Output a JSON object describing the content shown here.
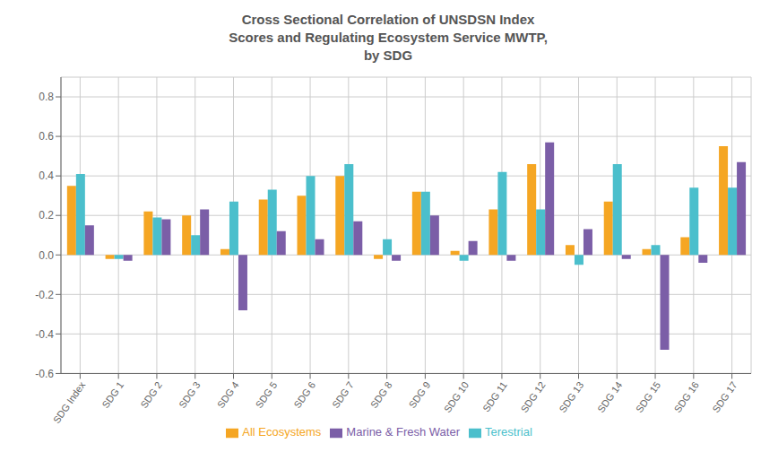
{
  "chart_data": {
    "type": "bar",
    "title": "Cross Sectional Correlation of UNSDSN Index\nScores and Regulating Ecosystem Service MWTP,\nby SDG",
    "categories": [
      "SDG Index",
      "SDG 1",
      "SDG 2",
      "SDG 3",
      "SDG 4",
      "SDG 5",
      "SDG 6",
      "SDG 7",
      "SDG 8",
      "SDG 9",
      "SDG 10",
      "SDG 11",
      "SDG 12",
      "SDG 13",
      "SDG 14",
      "SDG 15",
      "SDG 16",
      "SDG 17"
    ],
    "series": [
      {
        "name": "All Ecosystems",
        "color": "#F5A623",
        "values": [
          0.35,
          -0.02,
          0.22,
          0.2,
          0.03,
          0.28,
          0.3,
          0.4,
          -0.02,
          0.32,
          0.02,
          0.23,
          0.46,
          0.05,
          0.27,
          0.03,
          0.09,
          0.55
        ]
      },
      {
        "name": "Terestrial",
        "color": "#4BBFCC",
        "values": [
          0.41,
          -0.02,
          0.19,
          0.1,
          0.27,
          0.33,
          0.4,
          0.46,
          0.08,
          0.32,
          -0.03,
          0.42,
          0.23,
          -0.05,
          0.46,
          0.05,
          0.34,
          0.34
        ]
      },
      {
        "name": "Marine & Fresh Water",
        "color": "#7B5EA7",
        "values": [
          0.15,
          -0.03,
          0.18,
          0.23,
          -0.28,
          0.12,
          0.08,
          0.17,
          -0.03,
          0.2,
          0.07,
          -0.03,
          0.57,
          0.13,
          -0.02,
          -0.48,
          -0.04,
          0.47
        ]
      }
    ],
    "ylim": [
      -0.6,
      0.9
    ],
    "yticks": [
      -0.6,
      -0.4,
      -0.2,
      {
        "value": 0.0,
        "label": "0.0"
      },
      0.2,
      0.4,
      0.6,
      0.8
    ],
    "grid": true,
    "legend": "bottom"
  }
}
